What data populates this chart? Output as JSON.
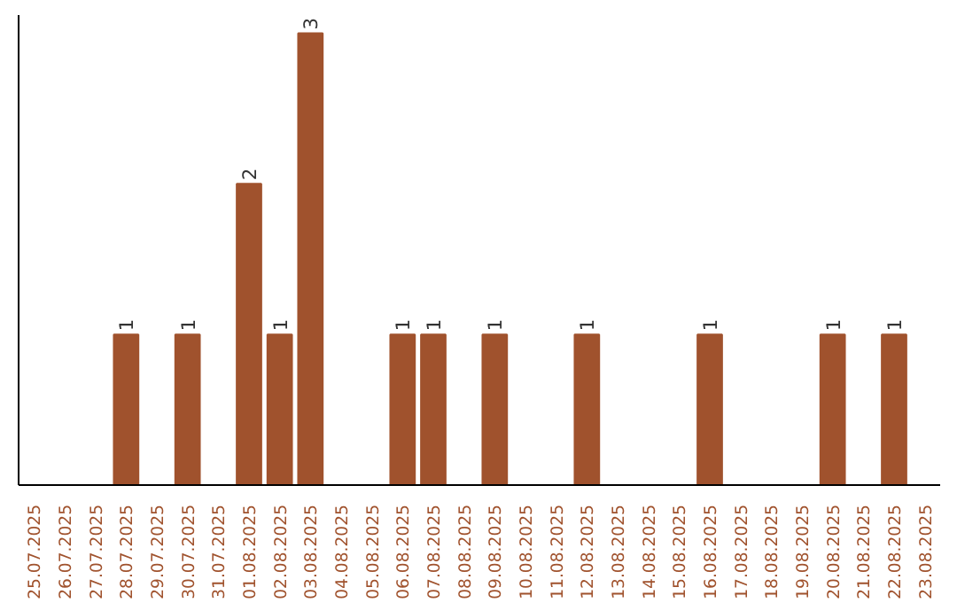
{
  "chart_data": {
    "type": "bar",
    "color": "#a0522d",
    "categories": [
      "25.07.2025",
      "26.07.2025",
      "27.07.2025",
      "28.07.2025",
      "29.07.2025",
      "30.07.2025",
      "31.07.2025",
      "01.08.2025",
      "02.08.2025",
      "03.08.2025",
      "04.08.2025",
      "05.08.2025",
      "06.08.2025",
      "07.08.2025",
      "08.08.2025",
      "09.08.2025",
      "10.08.2025",
      "11.08.2025",
      "12.08.2025",
      "13.08.2025",
      "14.08.2025",
      "15.08.2025",
      "16.08.2025",
      "17.08.2025",
      "18.08.2025",
      "19.08.2025",
      "20.08.2025",
      "21.08.2025",
      "22.08.2025",
      "23.08.2025"
    ],
    "values": [
      0,
      0,
      0,
      1,
      0,
      1,
      0,
      2,
      1,
      3,
      0,
      0,
      1,
      1,
      0,
      1,
      0,
      0,
      1,
      0,
      0,
      0,
      1,
      0,
      0,
      0,
      1,
      0,
      1,
      0
    ],
    "value_labels": [
      null,
      null,
      null,
      "1",
      null,
      "1",
      null,
      "2",
      "1",
      "3",
      null,
      null,
      "1",
      "1",
      null,
      "1",
      null,
      null,
      "1",
      null,
      null,
      null,
      "1",
      null,
      null,
      null,
      "1",
      null,
      "1",
      null
    ],
    "tick_labels": "x",
    "grid": false
  }
}
